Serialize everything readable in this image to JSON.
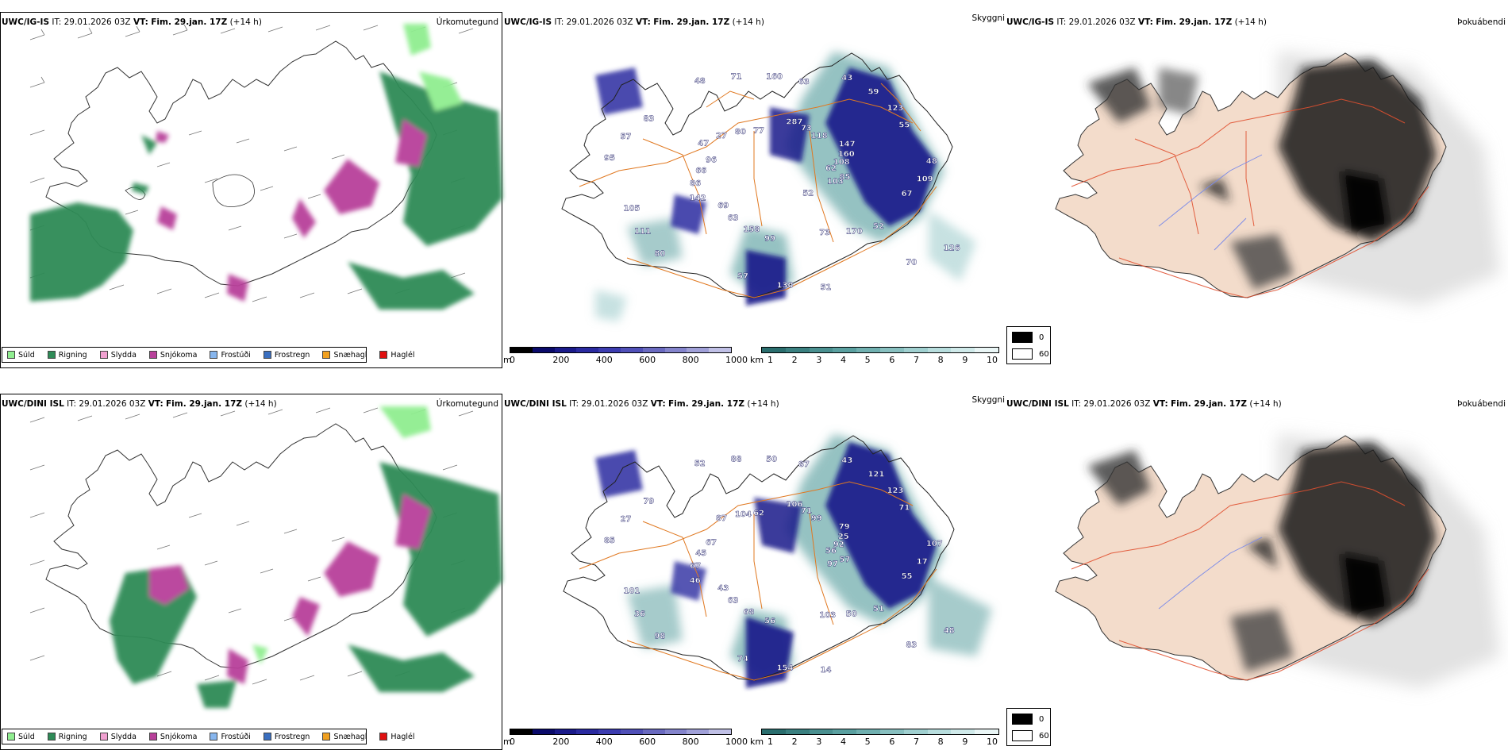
{
  "rows": [
    {
      "model": "UWC/IG-IS",
      "it_label": "IT:",
      "it_value": "29.01.2026 03Z",
      "vt_label": "VT:",
      "vt_value": "Fim. 29.jan. 17Z",
      "lead": "(+14 h)",
      "titles": [
        "Úrkomutegund",
        "Skyggni",
        "Þokuábendi"
      ],
      "cloud_labels": [
        "62",
        "69",
        "63",
        "70",
        "96",
        "55",
        "57",
        "77",
        "67",
        "105",
        "118",
        "73",
        "83",
        "108",
        "63",
        "160",
        "126",
        "66",
        "123",
        "130",
        "80",
        "109",
        "111",
        "73",
        "170",
        "57",
        "160",
        "158",
        "71",
        "103",
        "86",
        "59",
        "51",
        "27",
        "48",
        "80",
        "287",
        "52",
        "95",
        "147",
        "99",
        "48",
        "85",
        "142",
        "43",
        "52",
        "47"
      ]
    },
    {
      "model": "UWC/DINI ISL",
      "it_label": "IT:",
      "it_value": "29.01.2026 03Z",
      "vt_label": "VT:",
      "vt_value": "Fim. 29.jan. 17Z",
      "lead": "(+14 h)",
      "titles": [
        "Úrkomutegund",
        "Skyggni",
        "Þokuábendi"
      ],
      "cloud_labels": [
        "56",
        "43",
        "87",
        "83",
        "67",
        "71",
        "74",
        "62",
        "55",
        "101",
        "99",
        "103",
        "79",
        "92",
        "63",
        "50",
        "48",
        "45",
        "123",
        "154",
        "104",
        "17",
        "36",
        "71",
        "50",
        "27",
        "25",
        "68",
        "88",
        "97",
        "67",
        "121",
        "14",
        "87",
        "107",
        "98",
        "106",
        "51",
        "85",
        "79",
        "56",
        "52",
        "57",
        "46",
        "43"
      ]
    }
  ],
  "precip_legend": [
    {
      "label": "Súld",
      "color": "#90ee90"
    },
    {
      "label": "Rigning",
      "color": "#2e8b57"
    },
    {
      "label": "Slydda",
      "color": "#f0a0d0"
    },
    {
      "label": "Snjókoma",
      "color": "#b8409a"
    },
    {
      "label": "Frostúði",
      "color": "#87b6ee"
    },
    {
      "label": "Frostregn",
      "color": "#3a6fc0"
    },
    {
      "label": "Snæhagl",
      "color": "#f0a020"
    },
    {
      "label": "Haglél",
      "color": "#e01010"
    }
  ],
  "ceiling_bar": {
    "unit": "m",
    "ticks": [
      "0",
      "200",
      "400",
      "600",
      "800",
      "1000"
    ],
    "colors": [
      "#000000",
      "#0a0a6a",
      "#1a1a8a",
      "#2a2aa0",
      "#3c3cb0",
      "#5050b8",
      "#6a6ac0",
      "#8484cc",
      "#a0a0d8",
      "#c0c0e6"
    ]
  },
  "visibility_bar": {
    "unit": "km",
    "ticks": [
      "1",
      "2",
      "3",
      "4",
      "5",
      "6",
      "7",
      "8",
      "9",
      "10"
    ],
    "colors": [
      "#2a6e6e",
      "#3a8080",
      "#4a9090",
      "#5aa0a0",
      "#70b0b0",
      "#88c0c0",
      "#a0d0d0",
      "#b8dede",
      "#d0eaea",
      "#eaf6f6"
    ]
  },
  "fog_legend": [
    {
      "label": "0",
      "color": "#000000"
    },
    {
      "label": "60",
      "color": "#ffffff"
    }
  ]
}
